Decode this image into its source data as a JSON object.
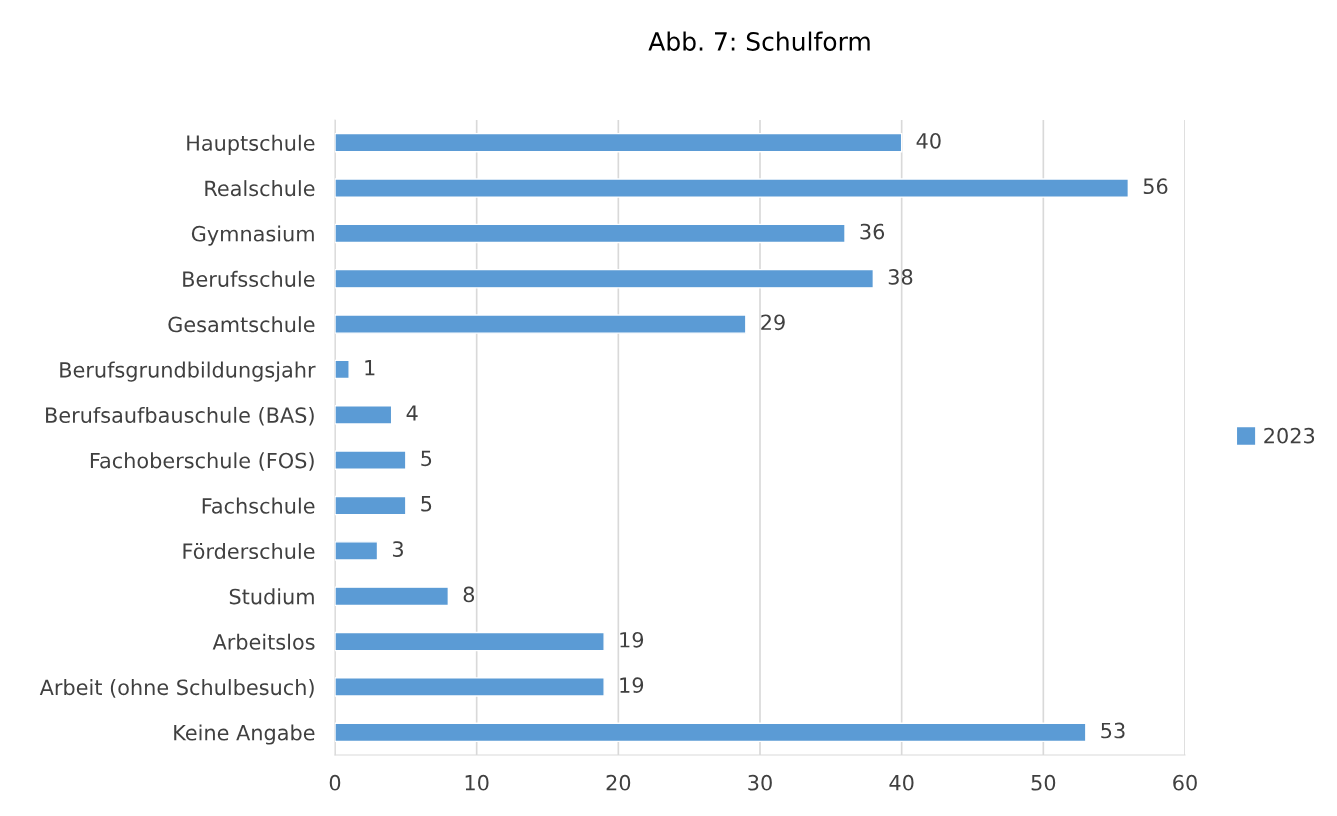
{
  "chart_data": {
    "type": "bar",
    "orientation": "horizontal",
    "title": "Abb. 7: Schulform",
    "categories": [
      "Hauptschule",
      "Realschule",
      "Gymnasium",
      "Berufsschule",
      "Gesamtschule",
      "Berufsgrundbildungsjahr",
      "Berufsaufbauschule (BAS)",
      "Fachoberschule (FOS)",
      "Fachschule",
      "Förderschule",
      "Studium",
      "Arbeitslos",
      "Arbeit (ohne Schulbesuch)",
      "Keine Angabe"
    ],
    "series": [
      {
        "name": "2023",
        "color": "#5b9bd5",
        "values": [
          40,
          56,
          36,
          38,
          29,
          1,
          4,
          5,
          5,
          3,
          8,
          19,
          19,
          53
        ]
      }
    ],
    "xlim": [
      0,
      60
    ],
    "xticks": [
      0,
      10,
      20,
      30,
      40,
      50,
      60
    ],
    "grid": "x",
    "legend": "right",
    "data_labels": true
  }
}
